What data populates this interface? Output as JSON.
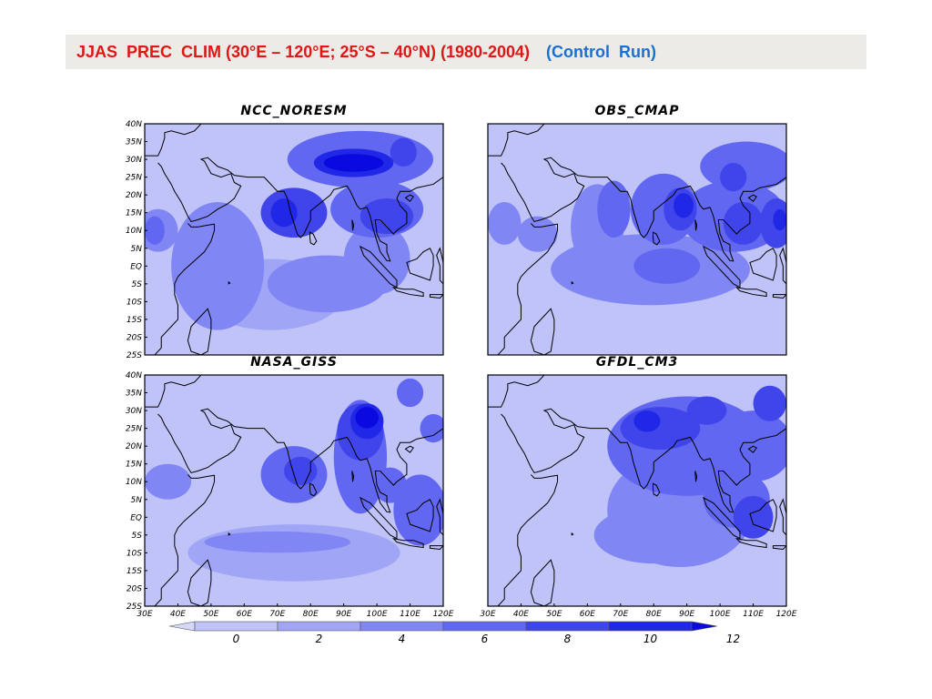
{
  "title": {
    "main": "JJAS  PREC  CLIM (30°E – 120°E; 25°S – 40°N) (1980-2004)",
    "run": "(Control  Run)"
  },
  "panels": [
    {
      "name": "NCC_NORESM",
      "cells": [
        {
          "lon": 52,
          "lat": 0,
          "rx": 14,
          "ry": 18,
          "v": 4
        },
        {
          "lon": 68,
          "lat": -8,
          "rx": 22,
          "ry": 10,
          "v": 3
        },
        {
          "lon": 85,
          "lat": -5,
          "rx": 18,
          "ry": 8,
          "v": 4
        },
        {
          "lon": 100,
          "lat": 2,
          "rx": 10,
          "ry": 10,
          "v": 4
        },
        {
          "lon": 34,
          "lat": 10,
          "rx": 6,
          "ry": 6,
          "v": 4
        },
        {
          "lon": 33,
          "lat": 10,
          "rx": 3,
          "ry": 4,
          "v": 6
        },
        {
          "lon": 75,
          "lat": 15,
          "rx": 10,
          "ry": 7,
          "v": 8
        },
        {
          "lon": 72,
          "lat": 15,
          "rx": 4,
          "ry": 4,
          "v": 10
        },
        {
          "lon": 100,
          "lat": 16,
          "rx": 14,
          "ry": 8,
          "v": 6
        },
        {
          "lon": 103,
          "lat": 14,
          "rx": 8,
          "ry": 5,
          "v": 8
        },
        {
          "lon": 95,
          "lat": 30,
          "rx": 22,
          "ry": 8,
          "v": 6
        },
        {
          "lon": 93,
          "lat": 29,
          "rx": 12,
          "ry": 4,
          "v": 10
        },
        {
          "lon": 93,
          "lat": 29,
          "rx": 9,
          "ry": 2.5,
          "v": 12
        },
        {
          "lon": 108,
          "lat": 32,
          "rx": 4,
          "ry": 4,
          "v": 8
        }
      ]
    },
    {
      "name": "OBS_CMAP",
      "cells": [
        {
          "lon": 63,
          "lat": 11,
          "rx": 8,
          "ry": 12,
          "v": 4
        },
        {
          "lon": 79,
          "lat": -1,
          "rx": 30,
          "ry": 10,
          "v": 4
        },
        {
          "lon": 84,
          "lat": 0,
          "rx": 10,
          "ry": 5,
          "v": 6
        },
        {
          "lon": 45,
          "lat": 9,
          "rx": 6,
          "ry": 5,
          "v": 4
        },
        {
          "lon": 35,
          "lat": 12,
          "rx": 5,
          "ry": 6,
          "v": 4
        },
        {
          "lon": 68,
          "lat": 16,
          "rx": 5,
          "ry": 8,
          "v": 6
        },
        {
          "lon": 83,
          "lat": 16,
          "rx": 10,
          "ry": 10,
          "v": 6
        },
        {
          "lon": 88,
          "lat": 16,
          "rx": 5,
          "ry": 6,
          "v": 8
        },
        {
          "lon": 89,
          "lat": 17,
          "rx": 3,
          "ry": 3.5,
          "v": 10
        },
        {
          "lon": 104,
          "lat": 14,
          "rx": 16,
          "ry": 10,
          "v": 6
        },
        {
          "lon": 107,
          "lat": 12,
          "rx": 6,
          "ry": 6,
          "v": 8
        },
        {
          "lon": 117,
          "lat": 12,
          "rx": 5,
          "ry": 7,
          "v": 8
        },
        {
          "lon": 118,
          "lat": 13,
          "rx": 2,
          "ry": 3,
          "v": 10
        },
        {
          "lon": 108,
          "lat": 28,
          "rx": 14,
          "ry": 7,
          "v": 6
        },
        {
          "lon": 104,
          "lat": 25,
          "rx": 4,
          "ry": 4,
          "v": 8
        }
      ]
    },
    {
      "name": "NASA_GISS",
      "cells": [
        {
          "lon": 75,
          "lat": -10,
          "rx": 32,
          "ry": 8,
          "v": 3
        },
        {
          "lon": 70,
          "lat": -7,
          "rx": 22,
          "ry": 3,
          "v": 4
        },
        {
          "lon": 37,
          "lat": 10,
          "rx": 7,
          "ry": 5,
          "v": 4
        },
        {
          "lon": 75,
          "lat": 12,
          "rx": 10,
          "ry": 8,
          "v": 6
        },
        {
          "lon": 77,
          "lat": 13,
          "rx": 5,
          "ry": 4,
          "v": 8
        },
        {
          "lon": 95,
          "lat": 17,
          "rx": 8,
          "ry": 16,
          "v": 6
        },
        {
          "lon": 95,
          "lat": 24,
          "rx": 7,
          "ry": 8,
          "v": 8
        },
        {
          "lon": 97,
          "lat": 27,
          "rx": 5,
          "ry": 5,
          "v": 10
        },
        {
          "lon": 97,
          "lat": 28,
          "rx": 3.5,
          "ry": 3,
          "v": 12
        },
        {
          "lon": 113,
          "lat": 2,
          "rx": 8,
          "ry": 10,
          "v": 6
        },
        {
          "lon": 104,
          "lat": 9,
          "rx": 5,
          "ry": 5,
          "v": 6
        },
        {
          "lon": 110,
          "lat": 35,
          "rx": 4,
          "ry": 4,
          "v": 6
        },
        {
          "lon": 117,
          "lat": 25,
          "rx": 4,
          "ry": 4,
          "v": 6
        }
      ]
    },
    {
      "name": "GFDL_CM3",
      "cells": [
        {
          "lon": 88,
          "lat": 2,
          "rx": 22,
          "ry": 16,
          "v": 4
        },
        {
          "lon": 80,
          "lat": -5,
          "rx": 18,
          "ry": 8,
          "v": 4
        },
        {
          "lon": 90,
          "lat": 20,
          "rx": 24,
          "ry": 14,
          "v": 6
        },
        {
          "lon": 82,
          "lat": 25,
          "rx": 12,
          "ry": 6,
          "v": 8
        },
        {
          "lon": 78,
          "lat": 27,
          "rx": 4,
          "ry": 3,
          "v": 10
        },
        {
          "lon": 110,
          "lat": 20,
          "rx": 12,
          "ry": 10,
          "v": 6
        },
        {
          "lon": 105,
          "lat": 5,
          "rx": 10,
          "ry": 8,
          "v": 6
        },
        {
          "lon": 110,
          "lat": 0,
          "rx": 6,
          "ry": 6,
          "v": 8
        },
        {
          "lon": 96,
          "lat": 30,
          "rx": 6,
          "ry": 4,
          "v": 8
        },
        {
          "lon": 115,
          "lat": 32,
          "rx": 5,
          "ry": 5,
          "v": 8
        }
      ]
    }
  ],
  "lat_ticks": [
    "40N",
    "35N",
    "30N",
    "25N",
    "20N",
    "15N",
    "10N",
    "5N",
    "EQ",
    "5S",
    "10S",
    "15S",
    "20S",
    "25S"
  ],
  "lon_ticks": [
    "30E",
    "40E",
    "50E",
    "60E",
    "70E",
    "80E",
    "90E",
    "100E",
    "110E",
    "120E"
  ],
  "colorbar": {
    "levels": [
      "0",
      "2",
      "4",
      "6",
      "8",
      "10",
      "12"
    ],
    "colors": [
      "#d5d8f8",
      "#bfc3f8",
      "#a0a5f6",
      "#8086f3",
      "#6167f0",
      "#3f45ea",
      "#2127e6",
      "#0a0ae0"
    ]
  }
}
